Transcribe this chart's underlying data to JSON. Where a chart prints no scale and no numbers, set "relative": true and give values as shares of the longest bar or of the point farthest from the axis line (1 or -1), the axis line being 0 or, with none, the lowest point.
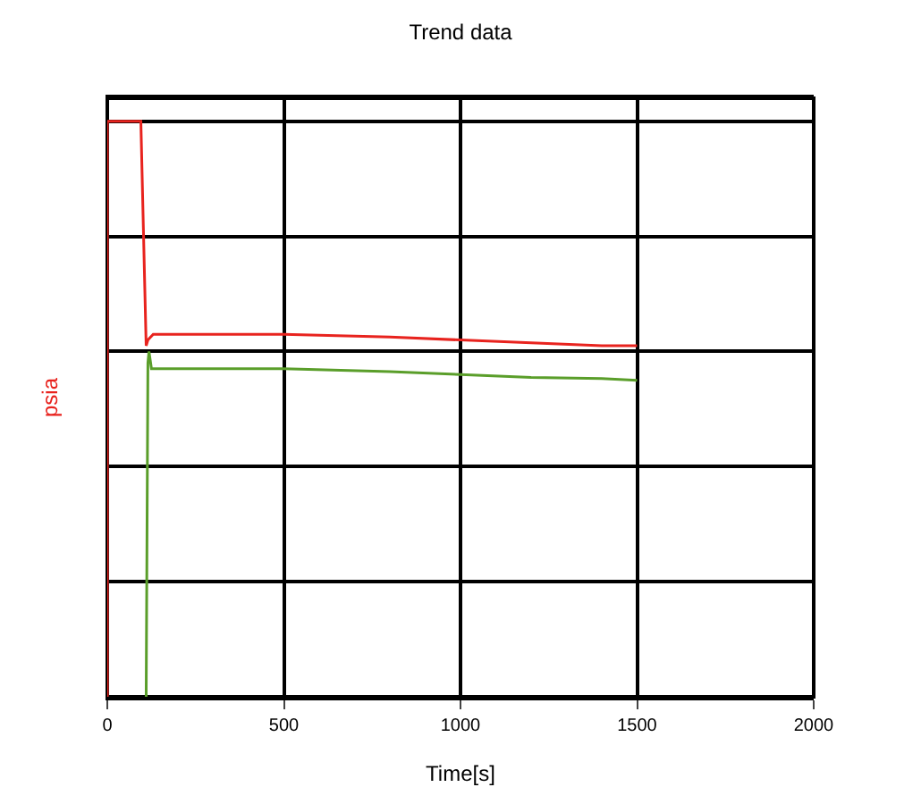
{
  "chart_data": {
    "type": "line",
    "title": "Trend data",
    "xlabel": "Time[s]",
    "ylabel": "psia",
    "relative": true,
    "grid": true,
    "marker": "none",
    "line_style": "solid",
    "xlim": [
      0,
      2000
    ],
    "xticks": [
      0,
      500,
      1000,
      1500,
      2000
    ],
    "series": [
      {
        "color": "#e8231e",
        "x": [
          0,
          0,
          50,
          95,
          110,
          115,
          130,
          200,
          500,
          800,
          1000,
          1200,
          1400,
          1500
        ],
        "values": [
          0,
          1,
          1,
          1,
          0.61,
          0.62,
          0.63,
          0.63,
          0.63,
          0.625,
          0.62,
          0.615,
          0.61,
          0.61
        ]
      },
      {
        "color": "#5a9e2a",
        "x": [
          110,
          115,
          118,
          125,
          200,
          500,
          800,
          1000,
          1200,
          1400,
          1500
        ],
        "values": [
          0,
          0.58,
          0.6,
          0.57,
          0.57,
          0.57,
          0.565,
          0.56,
          0.555,
          0.553,
          0.55
        ]
      }
    ]
  }
}
